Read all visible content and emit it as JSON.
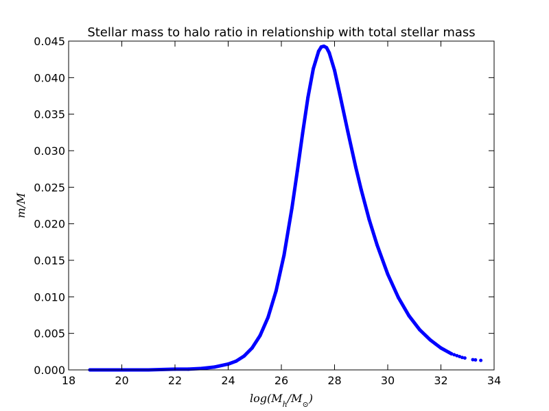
{
  "chart_data": {
    "type": "scatter",
    "title": "Stellar mass to halo ratio in relationship with total stellar mass",
    "xlabel": "log(M_h / M_⊙)",
    "ylabel": "m/M",
    "xlim": [
      18,
      34
    ],
    "ylim": [
      0.0,
      0.045
    ],
    "xticks": [
      "18",
      "20",
      "22",
      "24",
      "26",
      "28",
      "30",
      "32",
      "34"
    ],
    "yticks": [
      "0.000",
      "0.005",
      "0.010",
      "0.015",
      "0.020",
      "0.025",
      "0.030",
      "0.035",
      "0.040",
      "0.045"
    ],
    "grid": false,
    "marker_color": "#0000ff",
    "series": [
      {
        "x": [
          18.8,
          20.0,
          21.0,
          22.0,
          22.5,
          23.0,
          23.5,
          24.0,
          24.3,
          24.6,
          24.9,
          25.2,
          25.5,
          25.8,
          26.1,
          26.4,
          26.6,
          26.8,
          27.0,
          27.2,
          27.4,
          27.5,
          27.6,
          27.7,
          27.8,
          28.0,
          28.2,
          28.5,
          28.8,
          29.0,
          29.3,
          29.6,
          30.0,
          30.4,
          30.8,
          31.2,
          31.6,
          32.0,
          32.4,
          32.8,
          33.2,
          33.5
        ],
        "y": [
          0.0,
          0.0,
          0.0,
          0.0001,
          0.0001,
          0.0002,
          0.0004,
          0.0008,
          0.0012,
          0.0019,
          0.003,
          0.0047,
          0.0072,
          0.0108,
          0.0157,
          0.0222,
          0.0272,
          0.0324,
          0.0373,
          0.0412,
          0.0436,
          0.0442,
          0.0443,
          0.0441,
          0.0434,
          0.041,
          0.0377,
          0.0326,
          0.0277,
          0.0247,
          0.0206,
          0.0171,
          0.0131,
          0.0099,
          0.0074,
          0.0055,
          0.0041,
          0.003,
          0.0022,
          0.0017,
          0.0014,
          0.0013
        ]
      }
    ]
  }
}
